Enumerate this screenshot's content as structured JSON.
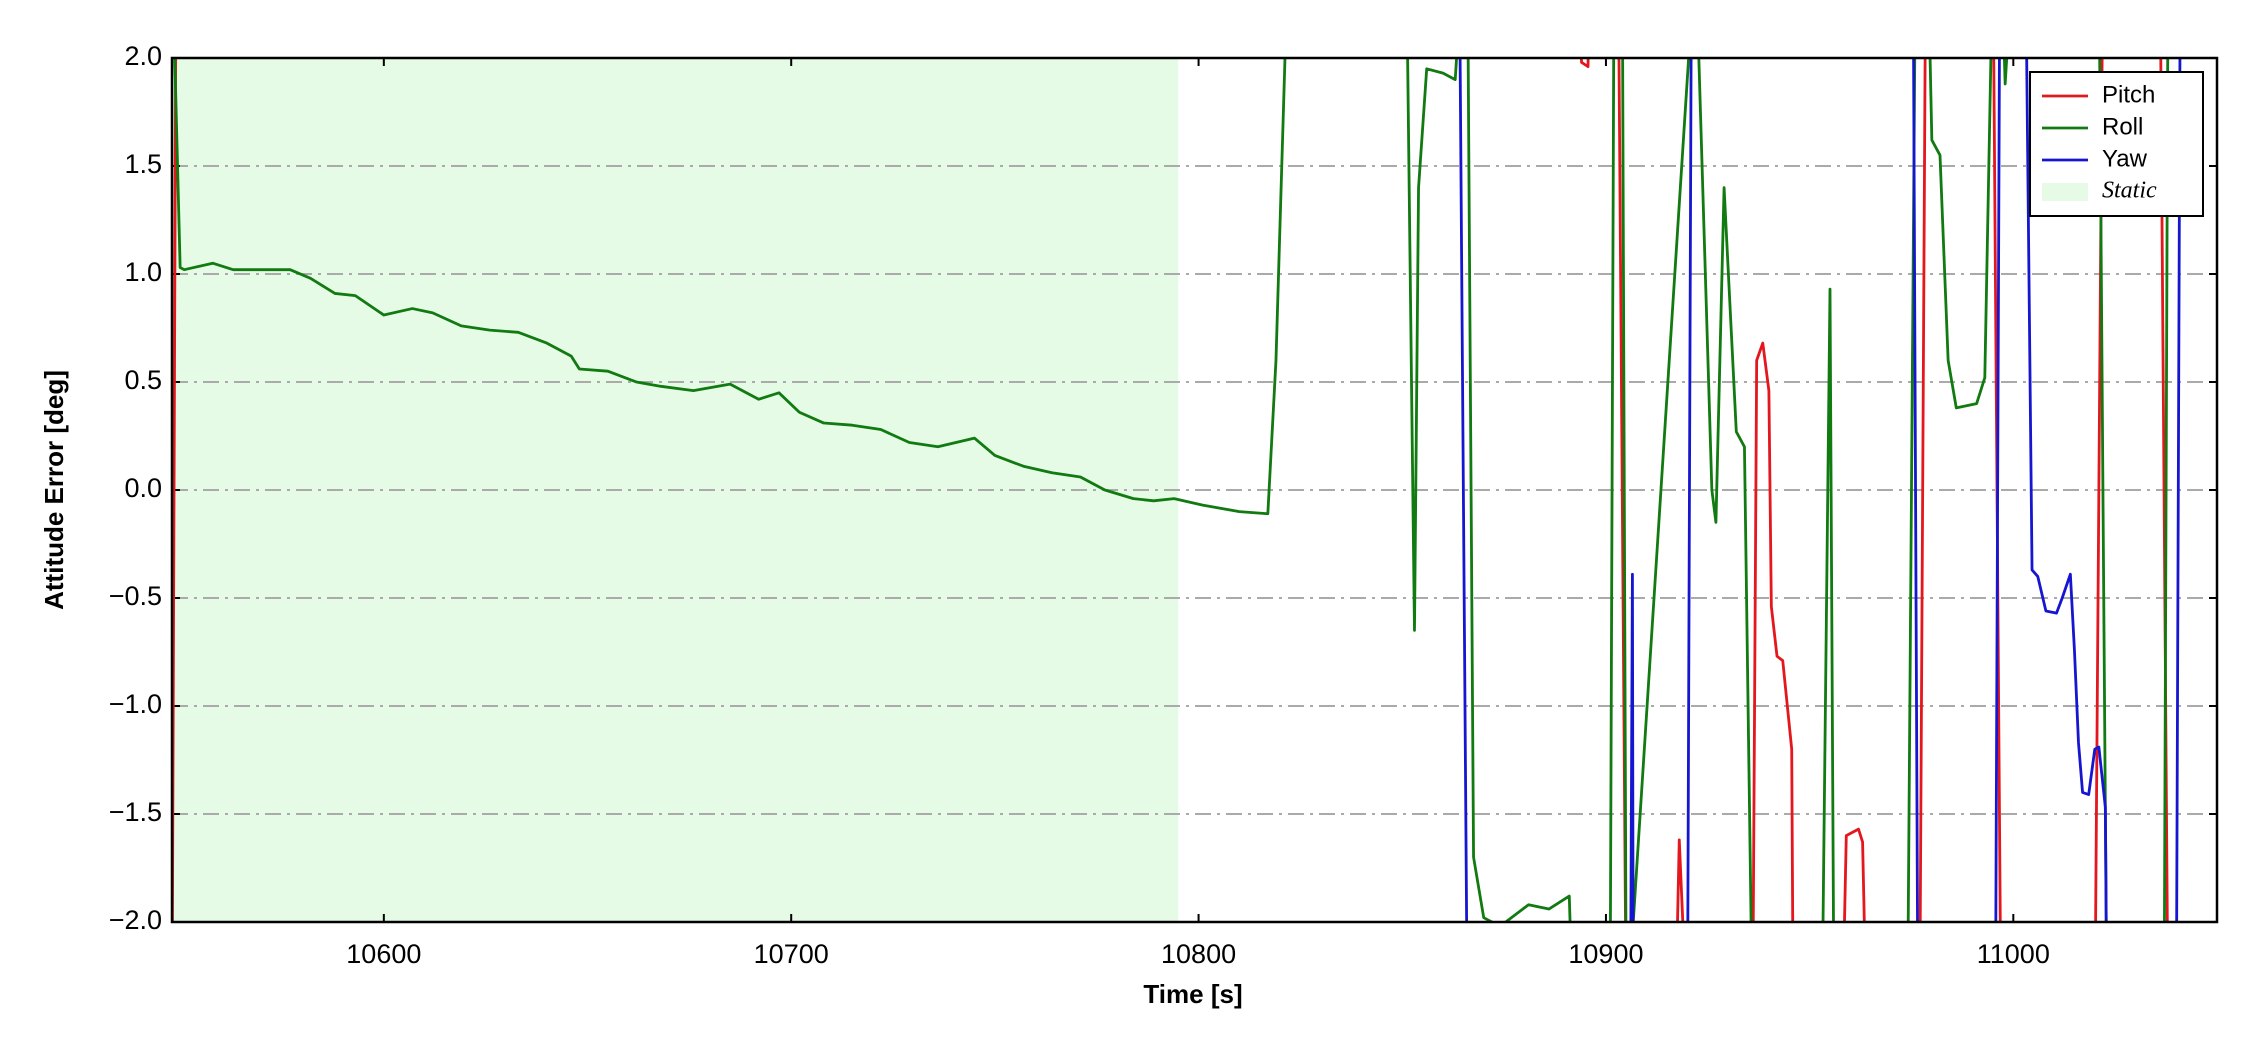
{
  "chart_data": {
    "type": "line",
    "xlabel": "Time [s]",
    "ylabel": "Attitude Error [deg]",
    "xlim": [
      10548,
      11050
    ],
    "ylim": [
      -2,
      2
    ],
    "xticks": [
      10600,
      10700,
      10800,
      10900,
      11000
    ],
    "yticks": [
      {
        "value": -2,
        "label": "−2.0"
      },
      {
        "value": -1.5,
        "label": "−1.5"
      },
      {
        "value": -1,
        "label": "−1.0"
      },
      {
        "value": -0.5,
        "label": "−0.5"
      },
      {
        "value": 0,
        "label": "0.0"
      },
      {
        "value": 0.5,
        "label": "0.5"
      },
      {
        "value": 1,
        "label": "1.0"
      },
      {
        "value": 1.5,
        "label": "1.5"
      },
      {
        "value": 2,
        "label": "2.0"
      }
    ],
    "grid": true,
    "legend": "upper right",
    "shaded_region": {
      "label": "Static",
      "x": [
        10548,
        10795
      ],
      "color": "#e6fbe6"
    },
    "series": [
      {
        "name": "Pitch",
        "color": "#e3171d",
        "x": [
          10548,
          10549,
          10893.5,
          10894,
          10895.6,
          10896,
          10903,
          10905,
          10917,
          10918,
          10920,
          10936,
          10937,
          10938.5,
          10940,
          10940.6,
          10942,
          10943.4,
          10945.6,
          10946,
          10958,
          10959,
          10962,
          10963,
          10964,
          10977,
          10978.5,
          10995,
          10997,
          11020,
          11022,
          11036,
          11038
        ],
        "values": [
          -2.5,
          2.5,
          2.5,
          1.98,
          1.96,
          2.5,
          2.5,
          -2.5,
          -2.5,
          -1.62,
          -2.5,
          -2.5,
          0.6,
          0.68,
          0.46,
          -0.54,
          -0.77,
          -0.79,
          -1.2,
          -2.5,
          -2.5,
          -1.6,
          -1.57,
          -1.63,
          -2.5,
          -2.5,
          2.5,
          2.5,
          -2.5,
          -2.5,
          2.5,
          2.5,
          -2.5
        ]
      },
      {
        "name": "Roll",
        "color": "#117a11",
        "x": [
          10548,
          10550,
          10551,
          10558,
          10563,
          10572,
          10577,
          10582,
          10588,
          10593,
          10600,
          10607,
          10612,
          10619,
          10626,
          10633,
          10640,
          10646,
          10648,
          10655,
          10662,
          10668,
          10676,
          10685,
          10692,
          10697,
          10702,
          10708,
          10715,
          10722,
          10729,
          10736,
          10745,
          10750,
          10757,
          10764,
          10771,
          10777,
          10784,
          10789,
          10794,
          10801,
          10810,
          10817,
          10819,
          10822,
          10851,
          10853,
          10854,
          10856,
          10860,
          10863,
          10865,
          10866,
          10867.5,
          10870,
          10874,
          10881,
          10886,
          10891,
          10892,
          10901,
          10902,
          10904,
          10905,
          10922,
          10926,
          10927,
          10929,
          10932,
          10934,
          10936,
          10953,
          10955,
          10956,
          10974,
          10976,
          10979,
          10980,
          10982,
          10984,
          10986,
          10991,
          10993,
          10995,
          10997,
          10998,
          11000,
          11021,
          11023,
          11037,
          11038
        ],
        "values": [
          2.5,
          1.03,
          1.02,
          1.05,
          1.02,
          1.02,
          1.02,
          0.98,
          0.91,
          0.9,
          0.81,
          0.84,
          0.82,
          0.76,
          0.74,
          0.73,
          0.68,
          0.62,
          0.56,
          0.55,
          0.5,
          0.48,
          0.46,
          0.49,
          0.42,
          0.45,
          0.36,
          0.31,
          0.3,
          0.28,
          0.22,
          0.2,
          0.24,
          0.16,
          0.11,
          0.08,
          0.06,
          0,
          -0.04,
          -0.05,
          -0.04,
          -0.07,
          -0.1,
          -0.11,
          0.6,
          2.5,
          2.5,
          -0.65,
          1.4,
          1.95,
          1.93,
          1.9,
          2.5,
          2.5,
          -1.7,
          -1.98,
          -2.02,
          -1.92,
          -1.94,
          -1.88,
          -2.5,
          -2.5,
          2.5,
          2.5,
          -2.5,
          2.5,
          0,
          -0.15,
          1.4,
          0.27,
          0.2,
          -2.5,
          -2.5,
          0.93,
          -2.5,
          -2.5,
          2.5,
          2.5,
          1.62,
          1.55,
          0.6,
          0.38,
          0.4,
          0.52,
          2.5,
          2.5,
          1.88,
          2.5,
          2.5,
          -2.5,
          -2.5,
          2.5
        ]
      },
      {
        "name": "Yaw",
        "color": "#1616d0",
        "x": [
          10864,
          10866,
          10906,
          10906.5,
          10906.7,
          10920,
          10921,
          10975.4,
          10976.6,
          10995.6,
          10996.7,
          11003,
          11004.6,
          11006,
          11008,
          11010.6,
          11012,
          11014,
          11015,
          11016,
          11017,
          11018.5,
          11020,
          11021,
          11022.6,
          11023,
          11040,
          11041
        ],
        "values": [
          2.5,
          -2.5,
          -2.5,
          -0.39,
          -2.5,
          -2.5,
          2.5,
          2.5,
          -2.5,
          -2.5,
          2.5,
          2.5,
          -0.37,
          -0.4,
          -0.56,
          -0.57,
          -0.5,
          -0.39,
          -0.74,
          -1.17,
          -1.4,
          -1.41,
          -1.2,
          -1.19,
          -1.47,
          -2.5,
          -2.5,
          2.5
        ]
      }
    ]
  }
}
